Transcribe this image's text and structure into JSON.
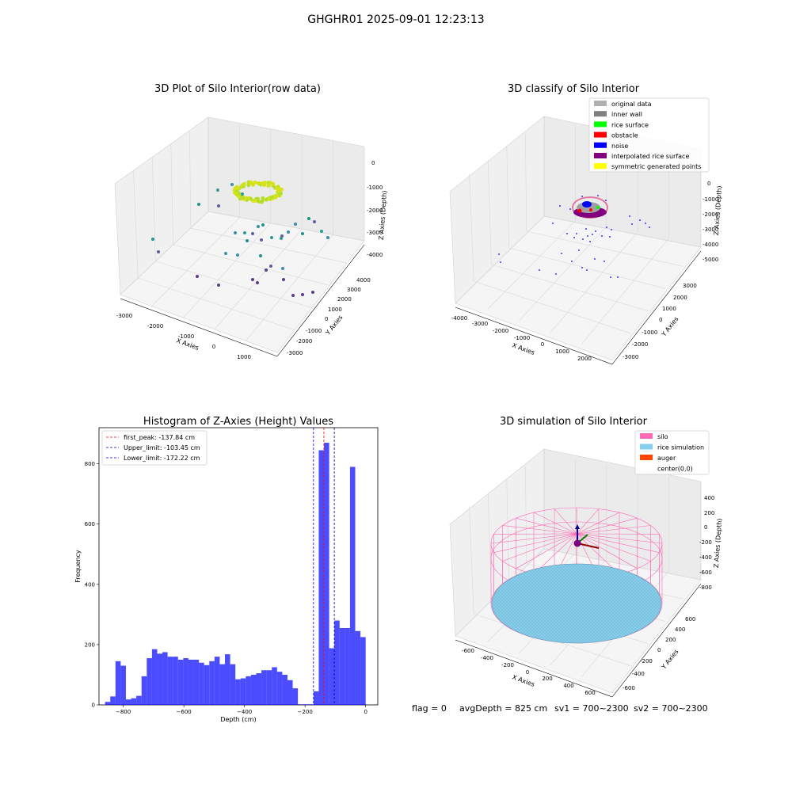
{
  "figure": {
    "suptitle": "GHGHR01 2025-09-01 12:23:13",
    "footer": {
      "flag": "flag = 0",
      "avg_depth": "avgDepth = 825 cm",
      "sv1": "sv1 = 700~2300",
      "sv2": "sv2 = 700~2300"
    }
  },
  "chart_data": [
    {
      "type": "scatter",
      "projection": "3d",
      "title": "3D Plot of Silo Interior(row data)",
      "xlabel": "X Axies",
      "ylabel": "Y Axies",
      "zlabel": "Z Axies (Depth)",
      "xticks": [
        "-3000",
        "-2000",
        "-1000",
        "0",
        "1000"
      ],
      "yticks": [
        "-3000",
        "-2000",
        "-1000",
        "0",
        "1000",
        "2000",
        "3000",
        "4000"
      ],
      "zticks": [
        "0",
        "-1000",
        "-2000",
        "-3000",
        "-4000"
      ],
      "colormap": "viridis"
    },
    {
      "type": "scatter",
      "projection": "3d",
      "title": "3D classify of Silo Interior",
      "xlabel": "X Axies",
      "ylabel": "Y Axies",
      "zlabel": "Z Axies (Depth)",
      "xticks": [
        "-4000",
        "-3000",
        "-2000",
        "-1000",
        "0",
        "1000",
        "2000"
      ],
      "yticks": [
        "-3000",
        "-2000",
        "-1000",
        "0",
        "1000",
        "2000",
        "3000"
      ],
      "zticks": [
        "0",
        "-1000",
        "-2000",
        "-3000",
        "-4000",
        "-5000"
      ],
      "legend_position": "top-right",
      "legend": [
        {
          "label": "original data",
          "color": "#b0b0b0"
        },
        {
          "label": "inner wall",
          "color": "#808080"
        },
        {
          "label": "rice surface",
          "color": "#00ff00"
        },
        {
          "label": "obstacle",
          "color": "#ff0000"
        },
        {
          "label": "noise",
          "color": "#0000ff"
        },
        {
          "label": "interpolated rice surface",
          "color": "#800080"
        },
        {
          "label": "symmetric generated points",
          "color": "#ffff00"
        }
      ]
    },
    {
      "type": "bar",
      "title": "Histogram of Z-Axies (Height) Values",
      "xlabel": "Depth (cm)",
      "ylabel": "Frequency",
      "xlim": [
        -880,
        40
      ],
      "ylim": [
        0,
        920
      ],
      "xticks": [
        -800,
        -600,
        -400,
        -200,
        0
      ],
      "yticks": [
        0,
        200,
        400,
        600,
        800
      ],
      "bin_width": 17.2,
      "bin_start": -860,
      "color": "#0000ff",
      "values": [
        10,
        28,
        145,
        130,
        18,
        22,
        30,
        95,
        155,
        185,
        170,
        175,
        160,
        160,
        150,
        155,
        150,
        150,
        140,
        132,
        145,
        160,
        135,
        168,
        135,
        85,
        88,
        95,
        100,
        105,
        115,
        115,
        125,
        110,
        100,
        82,
        55,
        2,
        2,
        2,
        45,
        845,
        870,
        188,
        280,
        255,
        255,
        790,
        245,
        225
      ],
      "vlines": [
        {
          "label": "first_peak: -137.84 cm",
          "value": -137.84,
          "color": "#ff0000"
        },
        {
          "label": "Upper_limit: -103.45 cm",
          "value": -103.45,
          "color": "#00008b"
        },
        {
          "label": "Lower_limit: -172.22 cm",
          "value": -172.22,
          "color": "#0000ff"
        }
      ]
    },
    {
      "type": "scatter",
      "projection": "3d",
      "title": "3D simulation of Silo Interior",
      "xlabel": "X Axies",
      "ylabel": "Y Axies",
      "zlabel": "Z Axies (Depth)",
      "xticks": [
        "-600",
        "-400",
        "-200",
        "0",
        "200",
        "400",
        "600"
      ],
      "yticks": [
        "-600",
        "-400",
        "-200",
        "0",
        "200",
        "400",
        "600"
      ],
      "zticks": [
        "400",
        "200",
        "0",
        "-200",
        "-400",
        "-600",
        "-800"
      ],
      "legend_position": "top-right",
      "legend": [
        {
          "label": "silo",
          "color": "#ff69b4"
        },
        {
          "label": "rice simulation",
          "color": "#87ceeb"
        },
        {
          "label": "auger",
          "color": "#ff4500"
        },
        {
          "label": "center(0,0)",
          "color": "#ffffff"
        }
      ]
    }
  ]
}
